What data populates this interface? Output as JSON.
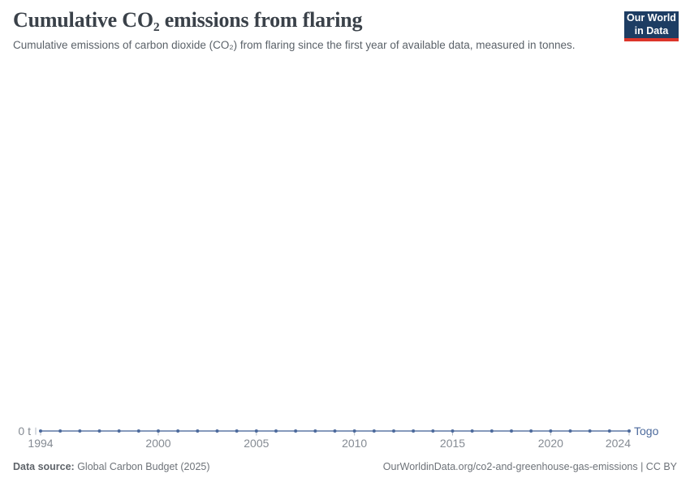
{
  "header": {
    "title": "Cumulative CO₂ emissions from flaring",
    "subtitle": "Cumulative emissions of carbon dioxide (CO₂) from flaring since the first year of available data, measured in tonnes.",
    "logo": {
      "line1": "Our World",
      "line2": "in Data"
    }
  },
  "chart_data": {
    "type": "line",
    "title": "Cumulative CO₂ emissions from flaring",
    "unit": "t",
    "grid": false,
    "markers": true,
    "legend_position": "end-of-line",
    "xlim": [
      1994,
      2024
    ],
    "ylim": [
      0,
      0
    ],
    "x": [
      1994,
      1995,
      1996,
      1997,
      1998,
      1999,
      2000,
      2001,
      2002,
      2003,
      2004,
      2005,
      2006,
      2007,
      2008,
      2009,
      2010,
      2011,
      2012,
      2013,
      2014,
      2015,
      2016,
      2017,
      2018,
      2019,
      2020,
      2021,
      2022,
      2023,
      2024
    ],
    "series": [
      {
        "name": "Togo",
        "color": "#4C6A9C",
        "values": [
          0,
          0,
          0,
          0,
          0,
          0,
          0,
          0,
          0,
          0,
          0,
          0,
          0,
          0,
          0,
          0,
          0,
          0,
          0,
          0,
          0,
          0,
          0,
          0,
          0,
          0,
          0,
          0,
          0,
          0,
          0
        ]
      }
    ],
    "x_ticks": [
      1994,
      2000,
      2005,
      2010,
      2015,
      2020,
      2024
    ],
    "y_tick_label": "0 t"
  },
  "footer": {
    "source_label": "Data source:",
    "source_value": " Global Carbon Budget (2025)",
    "rights": "OurWorldinData.org/co2-and-greenhouse-gas-emissions | CC BY"
  },
  "colors": {
    "series": "#4C6A9C",
    "axis_text": "#858b93",
    "tick_mark": "#b3bac3",
    "logo_bg": "#1d3d63",
    "logo_red": "#dc352a"
  }
}
